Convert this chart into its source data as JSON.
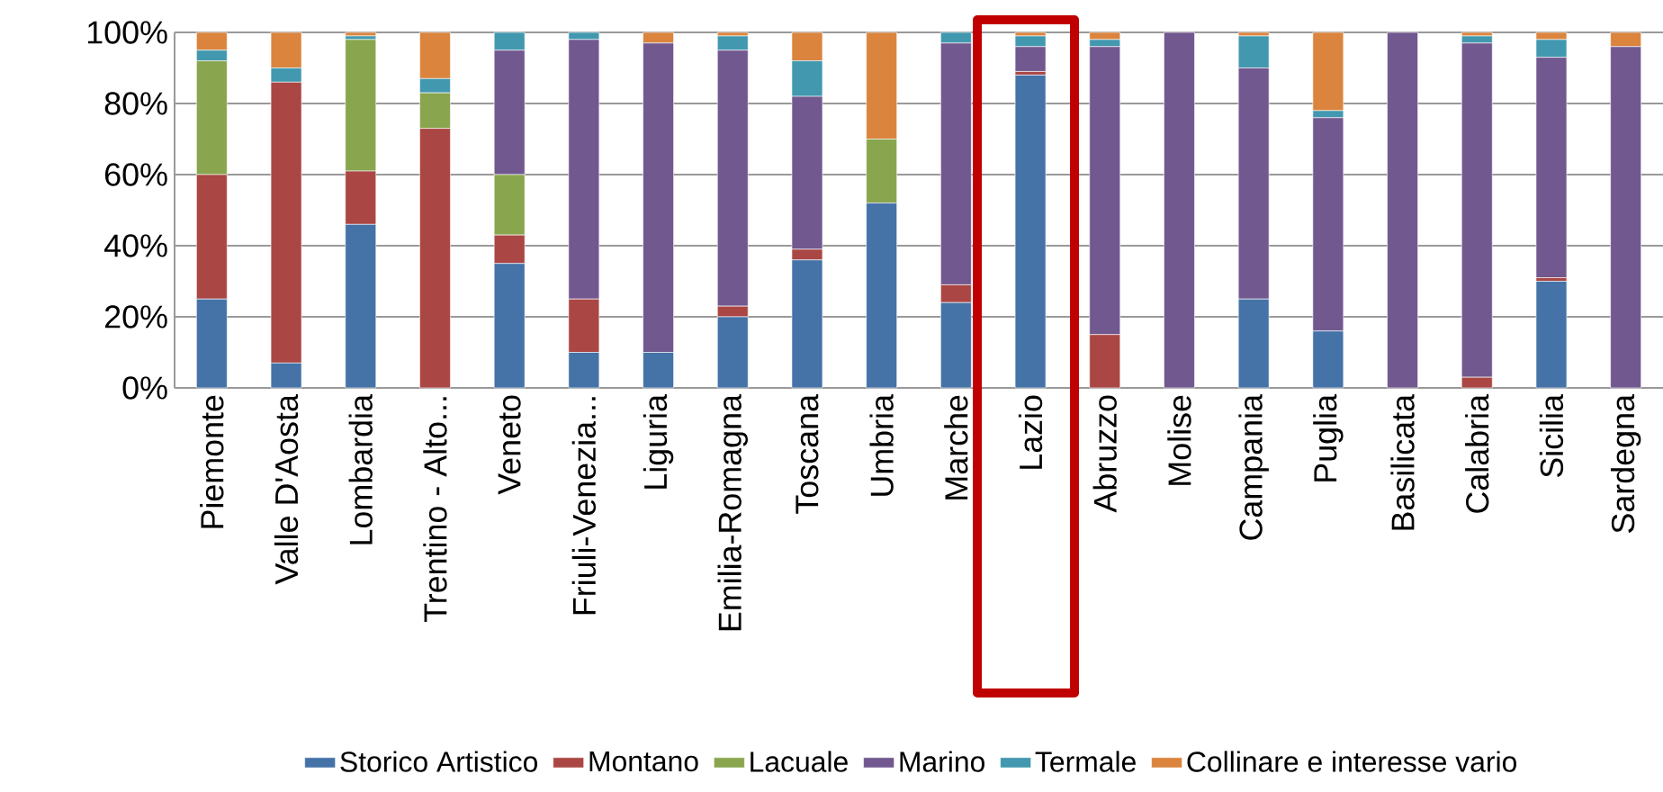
{
  "chart_data": {
    "type": "bar",
    "stacked": true,
    "categories": [
      "Piemonte",
      "Valle D'Aosta",
      "Lombardia",
      "Trentino - Alto...",
      "Veneto",
      "Friuli-Venezia...",
      "Liguria",
      "Emilia-Romagna",
      "Toscana",
      "Umbria",
      "Marche",
      "Lazio",
      "Abruzzo",
      "Molise",
      "Campania",
      "Puglia",
      "Basilicata",
      "Calabria",
      "Sicilia",
      "Sardegna"
    ],
    "series": [
      {
        "name": "Storico Artistico",
        "color": "#4572a7",
        "values": [
          25,
          7,
          46,
          0,
          35,
          10,
          10,
          20,
          36,
          52,
          24,
          88,
          0,
          0,
          25,
          16,
          0,
          0,
          30,
          0
        ]
      },
      {
        "name": "Montano",
        "color": "#aa4643",
        "values": [
          35,
          79,
          15,
          73,
          8,
          15,
          0,
          3,
          3,
          0,
          5,
          1,
          15,
          0,
          0,
          0,
          0,
          3,
          1,
          0
        ]
      },
      {
        "name": "Lacuale",
        "color": "#89a54e",
        "values": [
          32,
          0,
          37,
          10,
          17,
          0,
          0,
          0,
          0,
          18,
          0,
          0,
          0,
          0,
          0,
          0,
          0,
          0,
          0,
          0
        ]
      },
      {
        "name": "Marino",
        "color": "#71588f",
        "values": [
          0,
          0,
          0,
          0,
          35,
          73,
          87,
          72,
          43,
          0,
          68,
          7,
          81,
          100,
          65,
          60,
          100,
          94,
          62,
          96
        ]
      },
      {
        "name": "Termale",
        "color": "#4198af",
        "values": [
          3,
          4,
          1,
          4,
          5,
          2,
          0,
          4,
          10,
          0,
          3,
          3,
          2,
          0,
          9,
          2,
          0,
          2,
          5,
          0
        ]
      },
      {
        "name": "Collinare e interesse vario",
        "color": "#db843d",
        "values": [
          5,
          10,
          1,
          13,
          0,
          0,
          3,
          1,
          8,
          30,
          0,
          1,
          2,
          0,
          1,
          22,
          0,
          1,
          2,
          4
        ]
      }
    ],
    "ylim": [
      0,
      100
    ],
    "yticks": [
      {
        "value": 0,
        "label": "0%"
      },
      {
        "value": 20,
        "label": "20%"
      },
      {
        "value": 40,
        "label": "40%"
      },
      {
        "value": 60,
        "label": "60%"
      },
      {
        "value": 80,
        "label": "80%"
      },
      {
        "value": 100,
        "label": "100%"
      }
    ],
    "grid": "y",
    "legend": "bottom"
  }
}
